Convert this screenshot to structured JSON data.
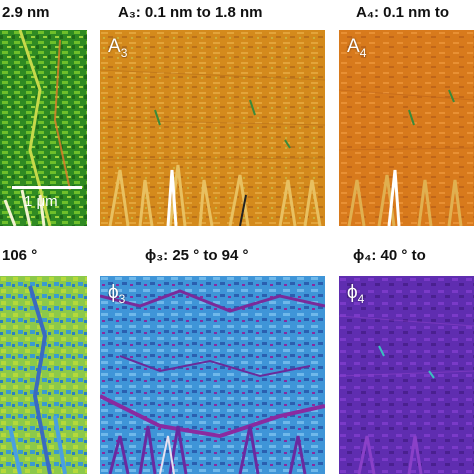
{
  "colors": {
    "A2": "#3a9d2a",
    "A3": "#d7901f",
    "A4": "#db7a1f",
    "phi2": "#7fc34a",
    "phi3": "#3b8fd8",
    "phi4": "#6a2fb8"
  },
  "captions": {
    "A2": "2.9 nm",
    "A3": "A₃: 0.1 nm to 1.8 nm",
    "A4": "A₄: 0.1 nm to",
    "phi2": "106 °",
    "phi3": "ϕ₃: 25 ° to 94 °",
    "phi4": "ϕ₄: 40 ° to"
  },
  "panel_labels": {
    "A3": "A",
    "A3_sub": "3",
    "A4": "A",
    "A4_sub": "4",
    "phi3": "ϕ",
    "phi3_sub": "3",
    "phi4": "ϕ",
    "phi4_sub": "4"
  },
  "scalebar": {
    "label": "1 μm"
  }
}
